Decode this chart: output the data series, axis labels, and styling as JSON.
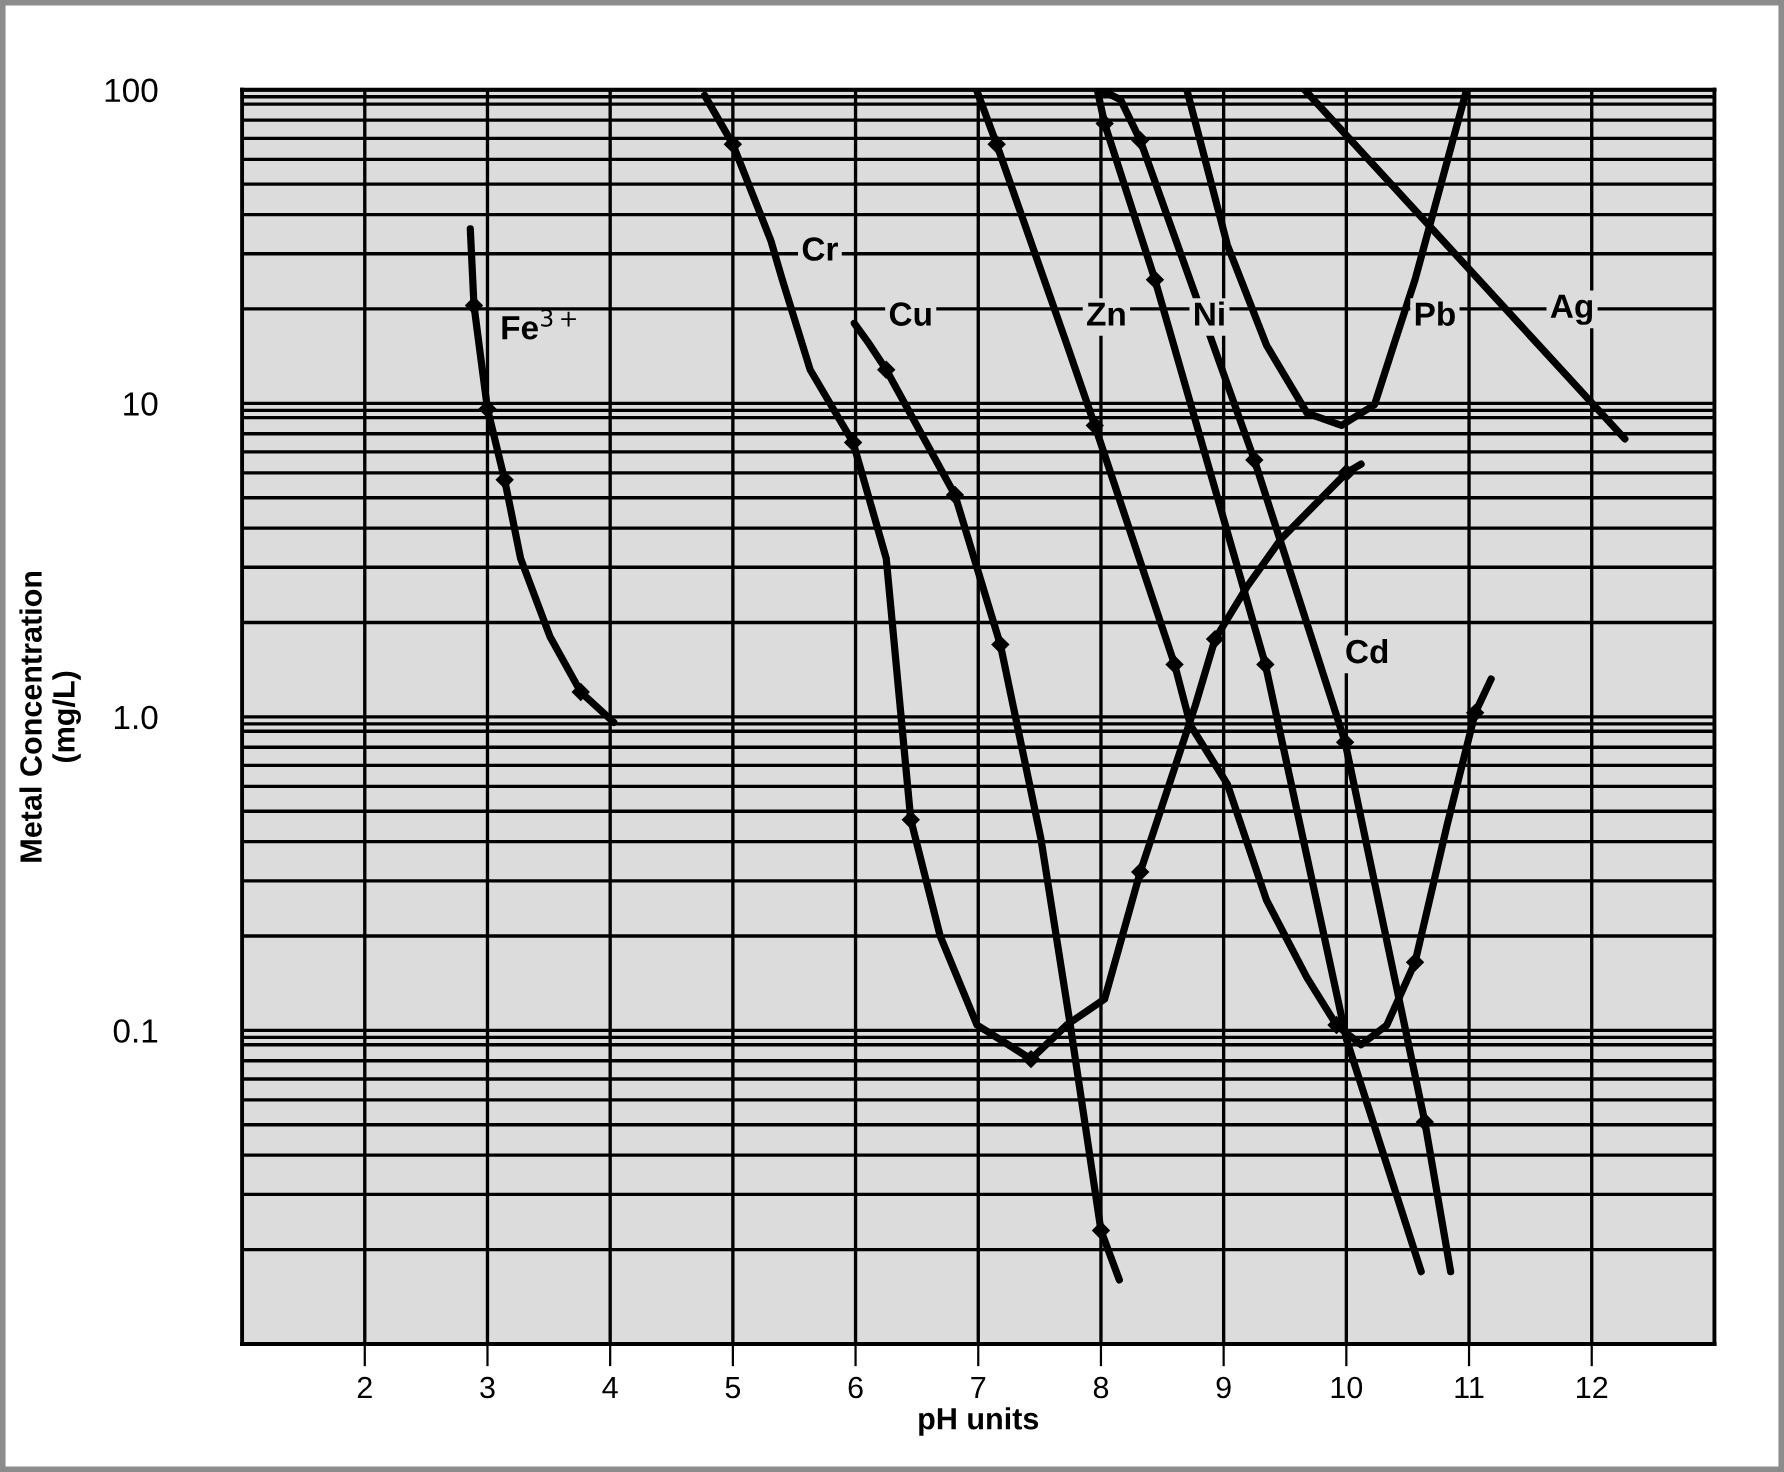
{
  "chart_data": {
    "type": "line",
    "xlabel": "pH units",
    "ylabel": "Metal Concentration\n(mg/L)",
    "log": "y",
    "xlim": [
      1,
      13
    ],
    "xticks": [
      2,
      3,
      4,
      5,
      6,
      7,
      8,
      9,
      10,
      11,
      12
    ],
    "ylim": [
      0.01,
      100
    ],
    "yticks": [
      {
        "value": 0.1,
        "label": "0.1"
      },
      {
        "value": 1,
        "label": "1.0"
      },
      10,
      100
    ],
    "grid": true,
    "marker": "none",
    "line_style": "solid",
    "series": [
      {
        "color": "#000000",
        "x": [
          2.86,
          2.89,
          2.945,
          3.0,
          3.14,
          3.27,
          3.51,
          3.76,
          4.03
        ],
        "values": [
          36,
          20.5,
          14,
          9.6,
          5.7,
          3.2,
          1.8,
          1.2,
          0.96
        ]
      },
      {
        "color": "#000000",
        "x": [
          4.77,
          5.0,
          5.31,
          5.4,
          5.63,
          5.98,
          6.25,
          6.45,
          6.69,
          6.99,
          7.43,
          7.72,
          8.03,
          8.32,
          8.77,
          8.93,
          9.19,
          9.47,
          10.0,
          10.12
        ],
        "values": [
          96,
          67,
          33,
          25,
          12.8,
          7.5,
          3.2,
          0.47,
          0.2,
          0.104,
          0.081,
          0.104,
          0.126,
          0.32,
          1.09,
          1.77,
          2.6,
          3.7,
          6.0,
          6.4
        ]
      },
      {
        "color": "#000000",
        "x": [
          5.99,
          6.11,
          6.25,
          6.81,
          7.18,
          7.51,
          7.75,
          8.0,
          8.15
        ],
        "values": [
          18,
          15.5,
          12.8,
          5.1,
          1.7,
          0.41,
          0.104,
          0.023,
          0.016
        ]
      },
      {
        "color": "#000000",
        "x": [
          6.99,
          7.15,
          7.72,
          7.95,
          8.6,
          8.73,
          9.03,
          9.35,
          9.68,
          9.92,
          10.12,
          10.33,
          10.56,
          10.82,
          11.05,
          11.18
        ],
        "values": [
          99,
          67,
          15.5,
          8.5,
          1.47,
          0.94,
          0.61,
          0.26,
          0.147,
          0.104,
          0.09,
          0.104,
          0.165,
          0.45,
          1.03,
          1.32
        ]
      },
      {
        "color": "#000000",
        "x": [
          7.97,
          8.03,
          8.44,
          8.59,
          9.34,
          10.0,
          10.61
        ],
        "values": [
          100,
          78,
          24.8,
          15.5,
          1.47,
          0.094,
          0.017
        ]
      },
      {
        "color": "#000000",
        "x": [
          8.0,
          8.16,
          8.32,
          9.25,
          9.83,
          9.99,
          10.64,
          10.85
        ],
        "values": [
          100,
          93,
          69,
          6.6,
          1.3,
          0.83,
          0.051,
          0.017
        ]
      },
      {
        "color": "#000000",
        "x": [
          8.7,
          9.03,
          9.35,
          9.68,
          9.96,
          10.23,
          10.39,
          10.56,
          10.98
        ],
        "values": [
          100,
          32,
          15.3,
          9.3,
          8.5,
          9.9,
          15.5,
          24.8,
          100
        ]
      },
      {
        "color": "#000000",
        "x": [
          9.66,
          11.5,
          12.27
        ],
        "values": [
          100,
          16.4,
          7.7
        ]
      },
      {
        "type": "scatter",
        "marker": "diamond",
        "color": "#000000",
        "x": [
          2.89,
          3.0,
          3.14,
          3.76,
          5.0,
          5.98,
          6.45,
          7.43,
          8.32,
          8.93,
          10.0,
          6.25,
          6.81,
          7.18,
          8.0,
          7.15,
          7.95,
          8.6,
          9.92,
          10.56,
          11.05,
          8.03,
          8.44,
          9.34,
          8.32,
          9.25,
          9.99,
          10.64
        ],
        "values": [
          20.5,
          9.6,
          5.7,
          1.2,
          67,
          7.5,
          0.47,
          0.081,
          0.32,
          1.77,
          6.0,
          12.8,
          5.1,
          1.7,
          0.023,
          67,
          8.5,
          1.47,
          0.104,
          0.165,
          1.03,
          78,
          24.8,
          1.47,
          69,
          6.6,
          0.83,
          0.051
        ]
      }
    ],
    "annotations": [
      {
        "text": "Fe$^{3+}$",
        "x": 2.945,
        "y": 14
      },
      {
        "text": "Cr",
        "x": 5.4,
        "y": 25
      },
      {
        "text": "Cu",
        "x": 6.11,
        "y": 15.5
      },
      {
        "text": "Zn",
        "x": 7.72,
        "y": 15.5
      },
      {
        "text": "Ni",
        "x": 8.59,
        "y": 15.5
      },
      {
        "text": "Pb",
        "x": 10.39,
        "y": 15.5
      },
      {
        "text": "Ag",
        "x": 11.5,
        "y": 16.4
      },
      {
        "text": "Cd",
        "x": 9.83,
        "y": 1.3
      }
    ]
  }
}
